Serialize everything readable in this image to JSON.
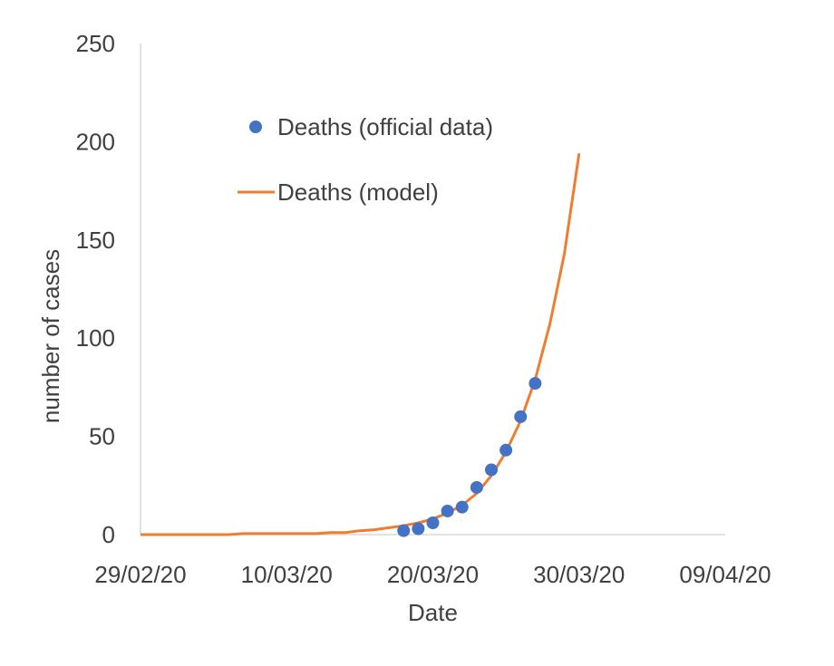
{
  "chart_data": {
    "type": "line",
    "title": "",
    "xlabel": "Date",
    "ylabel": "number of cases",
    "x_tick_labels": [
      "29/02/20",
      "10/03/20",
      "20/03/20",
      "30/03/20",
      "09/04/20"
    ],
    "x_tick_days": [
      0,
      10,
      20,
      30,
      40
    ],
    "y_tick_labels": [
      "0",
      "50",
      "100",
      "150",
      "200",
      "250"
    ],
    "xlim_days": [
      0,
      40
    ],
    "ylim": [
      0,
      250
    ],
    "grid": false,
    "legend_position": "top-left inside plot",
    "series": [
      {
        "name": "Deaths (official data)",
        "kind": "scatter",
        "color": "#4472C4",
        "points": [
          {
            "date": "18/03/20",
            "value": 2
          },
          {
            "date": "19/03/20",
            "value": 3
          },
          {
            "date": "20/03/20",
            "value": 6
          },
          {
            "date": "21/03/20",
            "value": 12
          },
          {
            "date": "22/03/20",
            "value": 14
          },
          {
            "date": "23/03/20",
            "value": 24
          },
          {
            "date": "24/03/20",
            "value": 33
          },
          {
            "date": "25/03/20",
            "value": 43
          },
          {
            "date": "26/03/20",
            "value": 60
          },
          {
            "date": "27/03/20",
            "value": 77
          }
        ]
      },
      {
        "name": "Deaths (model)",
        "kind": "line",
        "color": "#ED7D31",
        "points": [
          {
            "date": "29/02/20",
            "value": 0
          },
          {
            "date": "06/03/20",
            "value": 0
          },
          {
            "date": "07/03/20",
            "value": 0.5
          },
          {
            "date": "12/03/20",
            "value": 0.5
          },
          {
            "date": "13/03/20",
            "value": 1
          },
          {
            "date": "14/03/20",
            "value": 1
          },
          {
            "date": "15/03/20",
            "value": 2
          },
          {
            "date": "16/03/20",
            "value": 2.5
          },
          {
            "date": "17/03/20",
            "value": 3.5
          },
          {
            "date": "18/03/20",
            "value": 4.5
          },
          {
            "date": "19/03/20",
            "value": 6
          },
          {
            "date": "20/03/20",
            "value": 8
          },
          {
            "date": "21/03/20",
            "value": 11
          },
          {
            "date": "22/03/20",
            "value": 15
          },
          {
            "date": "23/03/20",
            "value": 21
          },
          {
            "date": "24/03/20",
            "value": 30
          },
          {
            "date": "25/03/20",
            "value": 42
          },
          {
            "date": "26/03/20",
            "value": 58
          },
          {
            "date": "27/03/20",
            "value": 79
          },
          {
            "date": "28/03/20",
            "value": 107
          },
          {
            "date": "29/03/20",
            "value": 143
          },
          {
            "date": "30/03/20",
            "value": 194
          }
        ]
      }
    ]
  }
}
